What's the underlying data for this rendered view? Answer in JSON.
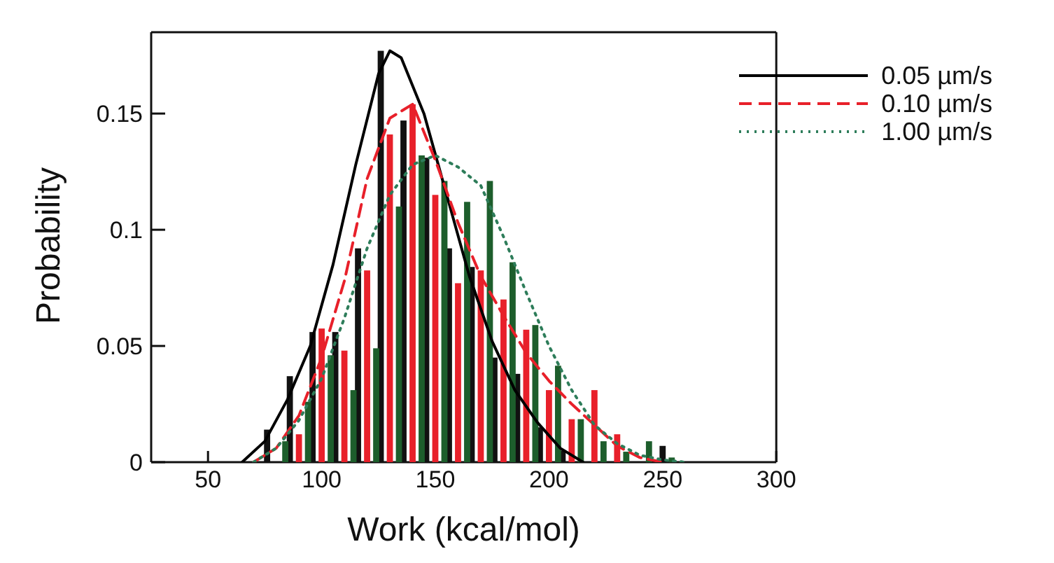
{
  "chart_data": {
    "type": "bar",
    "xlabel": "Work (kcal/mol)",
    "ylabel": "Probability",
    "xlim": [
      25,
      300
    ],
    "xticks": [
      50,
      100,
      150,
      200,
      250,
      300
    ],
    "ylim": [
      0,
      0.185
    ],
    "yticks": [
      0,
      0.05,
      0.1,
      0.15
    ],
    "legend": "top right",
    "series": [
      {
        "color": "#111111",
        "x": [
          76,
          86,
          96,
          106,
          116,
          126,
          136,
          146,
          156,
          166,
          176,
          186,
          196,
          206,
          250
        ],
        "values": [
          0.014,
          0.037,
          0.056,
          0.056,
          0.092,
          0.177,
          0.147,
          0.131,
          0.092,
          0.084,
          0.045,
          0.038,
          0.015,
          0.005,
          0.007
        ]
      },
      {
        "color": "#e8202a",
        "x": [
          90,
          100,
          110,
          120,
          130,
          140,
          150,
          160,
          170,
          180,
          190,
          200,
          210,
          220,
          230
        ],
        "values": [
          0.012,
          0.0575,
          0.048,
          0.0825,
          0.141,
          0.154,
          0.115,
          0.077,
          0.0825,
          0.07,
          0.057,
          0.031,
          0.0185,
          0.031,
          0.012
        ]
      },
      {
        "color": "#1d5e2c",
        "x": [
          84,
          94,
          104,
          114,
          124,
          134,
          144,
          154,
          164,
          174,
          184,
          194,
          204,
          214,
          224,
          234,
          244,
          254
        ],
        "values": [
          0.009,
          0.026,
          0.046,
          0.031,
          0.049,
          0.11,
          0.132,
          0.121,
          0.112,
          0.121,
          0.086,
          0.059,
          0.0415,
          0.0185,
          0.009,
          0.0045,
          0.009,
          0.002
        ]
      },
      {
        "type": "line",
        "name": "0.05 µm/s",
        "color": "#000000",
        "line_style": "solid",
        "marker": "none",
        "x": [
          65,
          75,
          85,
          95,
          105,
          115,
          125,
          130,
          135,
          145,
          155,
          165,
          175,
          185,
          195,
          205,
          215
        ],
        "values": [
          0,
          0.009,
          0.027,
          0.05,
          0.085,
          0.128,
          0.167,
          0.177,
          0.174,
          0.15,
          0.115,
          0.08,
          0.052,
          0.031,
          0.017,
          0.006,
          0
        ]
      },
      {
        "type": "line",
        "name": "0.10 µm/s",
        "color": "#e8202a",
        "line_style": "dashed",
        "marker": "none",
        "x": [
          70,
          80,
          90,
          100,
          110,
          120,
          130,
          140,
          150,
          160,
          170,
          180,
          190,
          200,
          210,
          220,
          230,
          240,
          250
        ],
        "values": [
          0,
          0.006,
          0.02,
          0.045,
          0.078,
          0.122,
          0.148,
          0.154,
          0.13,
          0.103,
          0.08,
          0.063,
          0.047,
          0.035,
          0.025,
          0.016,
          0.007,
          0.002,
          0
        ]
      },
      {
        "type": "line",
        "name": "1.00 µm/s",
        "color": "#2e7d5a",
        "line_style": "dotted",
        "marker": "none",
        "x": [
          70,
          80,
          90,
          100,
          110,
          120,
          130,
          140,
          150,
          160,
          170,
          180,
          190,
          200,
          210,
          220,
          230,
          240,
          250,
          260
        ],
        "values": [
          0,
          0.006,
          0.018,
          0.036,
          0.062,
          0.092,
          0.115,
          0.128,
          0.132,
          0.127,
          0.119,
          0.097,
          0.073,
          0.05,
          0.031,
          0.016,
          0.008,
          0.003,
          0.001,
          0
        ]
      }
    ]
  }
}
